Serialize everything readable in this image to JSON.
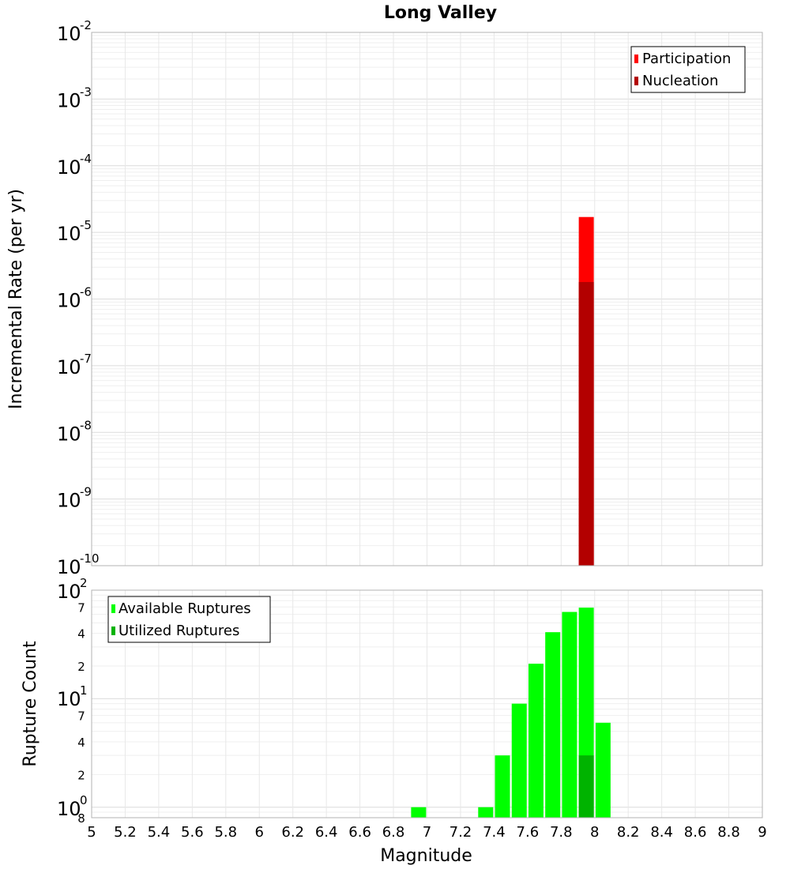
{
  "chart_data": [
    {
      "type": "bar",
      "title": "Long Valley",
      "ylabel": "Incremental Rate (per yr)",
      "yscale": "log",
      "ylim": [
        1e-10,
        0.01
      ],
      "y_ticks": [
        {
          "base": "10",
          "exp": "-2"
        },
        {
          "base": "10",
          "exp": "-3"
        },
        {
          "base": "10",
          "exp": "-4"
        },
        {
          "base": "10",
          "exp": "-5"
        },
        {
          "base": "10",
          "exp": "-6"
        },
        {
          "base": "10",
          "exp": "-7"
        },
        {
          "base": "10",
          "exp": "-8"
        },
        {
          "base": "10",
          "exp": "-9"
        },
        {
          "base": "10",
          "exp": "-10"
        }
      ],
      "legend_position": "top-right",
      "grid": true,
      "series": [
        {
          "name": "Participation",
          "color": "#ff0000",
          "x": [
            7.95
          ],
          "values": [
            1.7e-05
          ]
        },
        {
          "name": "Nucleation",
          "color": "#b30000",
          "x": [
            7.95
          ],
          "values": [
            1.8e-06
          ]
        }
      ]
    },
    {
      "type": "bar",
      "ylabel": "Rupture Count",
      "xlabel": "Magnitude",
      "yscale": "log",
      "ylim": [
        0.8,
        100
      ],
      "xlim": [
        5,
        9
      ],
      "x_ticks": [
        "5",
        "5.2",
        "5.4",
        "5.6",
        "5.8",
        "6",
        "6.2",
        "6.4",
        "6.6",
        "6.8",
        "7",
        "7.2",
        "7.4",
        "7.6",
        "7.8",
        "8",
        "8.2",
        "8.4",
        "8.6",
        "8.8",
        "9"
      ],
      "y_decade_ticks": [
        {
          "base": "10",
          "exp": "2"
        },
        {
          "base": "10",
          "exp": "1"
        },
        {
          "base": "10",
          "exp": "0"
        }
      ],
      "y_minor_ticks": [
        "7",
        "4",
        "2",
        "7",
        "4",
        "2",
        "8"
      ],
      "legend_position": "top-left",
      "grid": true,
      "series": [
        {
          "name": "Available Ruptures",
          "color": "#00ff00",
          "x": [
            6.95,
            7.35,
            7.45,
            7.55,
            7.65,
            7.75,
            7.85,
            7.95,
            8.05
          ],
          "values": [
            1,
            1,
            3,
            9,
            21,
            41,
            63,
            69,
            6
          ]
        },
        {
          "name": "Utilized Ruptures",
          "color": "#00b300",
          "x": [
            7.95
          ],
          "values": [
            3
          ]
        }
      ]
    }
  ]
}
